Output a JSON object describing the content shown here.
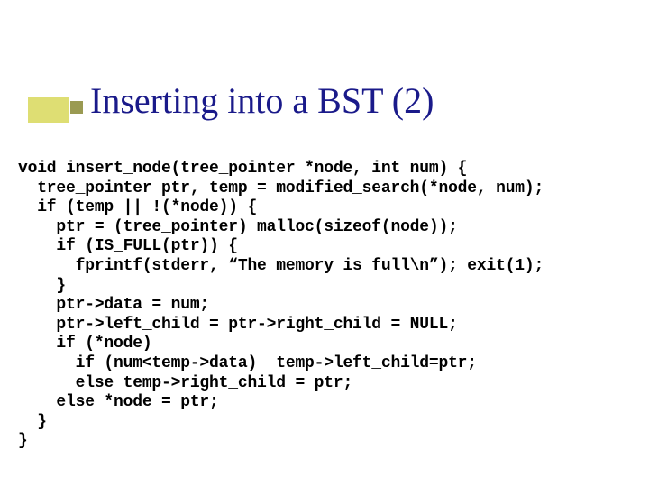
{
  "slide": {
    "title": "Inserting into a BST (2)",
    "title_color": "#1a1a8a",
    "title_fontsize": 40,
    "accent_color": "#c2c200",
    "bullet_color": "#9a9a52",
    "background_color": "#ffffff",
    "code": {
      "font_family": "Courier New",
      "font_size": 18,
      "font_weight": "bold",
      "color": "#000000",
      "lines": [
        "void insert_node(tree_pointer *node, int num) {",
        "  tree_pointer ptr, temp = modified_search(*node, num);",
        "  if (temp || !(*node)) {",
        "    ptr = (tree_pointer) malloc(sizeof(node));",
        "    if (IS_FULL(ptr)) {",
        "      fprintf(stderr, “The memory is full\\n”); exit(1);",
        "    }",
        "    ptr->data = num;",
        "    ptr->left_child = ptr->right_child = NULL;",
        "    if (*node)",
        "      if (num<temp->data)  temp->left_child=ptr;",
        "      else temp->right_child = ptr;",
        "    else *node = ptr;",
        "  }",
        "}"
      ]
    }
  }
}
